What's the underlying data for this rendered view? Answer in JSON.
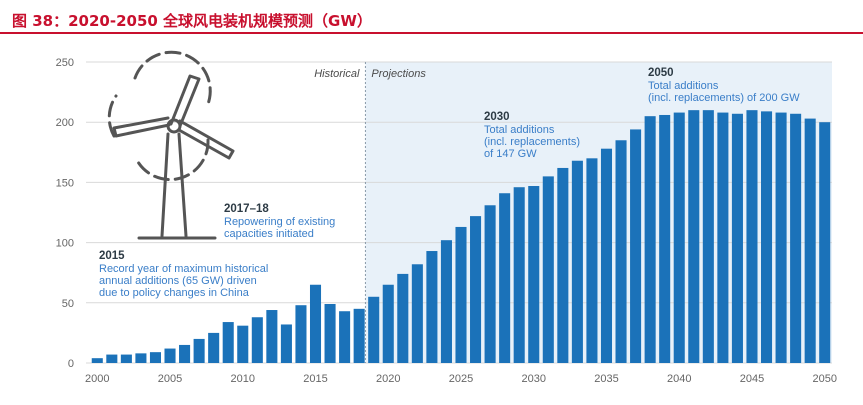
{
  "figure": {
    "title": "图 38：2020-2050 全球风电装机规模预测（GW）"
  },
  "colors": {
    "title_red": "#c8102e",
    "bar": "#1b72b9",
    "projection_bg": "#e8f1f9",
    "grid": "#d9d9d9",
    "annotation_heading": "#2d3b45",
    "annotation_text": "#3a7ec8",
    "turbine": "#555555"
  },
  "icons": [
    "wind-turbine-icon"
  ],
  "chart_data": {
    "type": "bar",
    "title": "",
    "xlabel": "",
    "ylabel": "",
    "ylim": [
      0,
      250
    ],
    "yticks": [
      "0",
      "50",
      "100",
      "150",
      "200",
      "250"
    ],
    "xticks": [
      "2000",
      "2005",
      "2010",
      "2015",
      "2020",
      "2025",
      "2030",
      "2035",
      "2040",
      "2045",
      "2050"
    ],
    "x": [
      2000,
      2001,
      2002,
      2003,
      2004,
      2005,
      2006,
      2007,
      2008,
      2009,
      2010,
      2011,
      2012,
      2013,
      2014,
      2015,
      2016,
      2017,
      2018,
      2019,
      2020,
      2021,
      2022,
      2023,
      2024,
      2025,
      2026,
      2027,
      2028,
      2029,
      2030,
      2031,
      2032,
      2033,
      2034,
      2035,
      2036,
      2037,
      2038,
      2039,
      2040,
      2041,
      2042,
      2043,
      2044,
      2045,
      2046,
      2047,
      2048,
      2049,
      2050
    ],
    "values": [
      4,
      7,
      7,
      8,
      9,
      12,
      15,
      20,
      25,
      34,
      31,
      38,
      44,
      32,
      48,
      65,
      49,
      43,
      45,
      55,
      65,
      74,
      82,
      93,
      102,
      113,
      122,
      131,
      141,
      146,
      147,
      155,
      162,
      168,
      170,
      178,
      185,
      194,
      205,
      206,
      208,
      210,
      210,
      208,
      207,
      210,
      209,
      208,
      207,
      203,
      200
    ],
    "grid": true,
    "regions": {
      "historical_label": "Historical",
      "projections_label": "Projections"
    },
    "annotations": [
      {
        "heading": "2015",
        "lines": [
          "Record year of maximum historical",
          "annual additions (65 GW) driven",
          "due to policy changes in China"
        ]
      },
      {
        "heading": "2017–18",
        "lines": [
          "Repowering of existing",
          "capacities initiated"
        ]
      },
      {
        "heading": "2030",
        "lines": [
          "Total additions",
          "(incl. replacements)",
          "of 147 GW"
        ]
      },
      {
        "heading": "2050",
        "lines": [
          "Total additions",
          "(incl. replacements) of 200 GW"
        ]
      }
    ]
  }
}
